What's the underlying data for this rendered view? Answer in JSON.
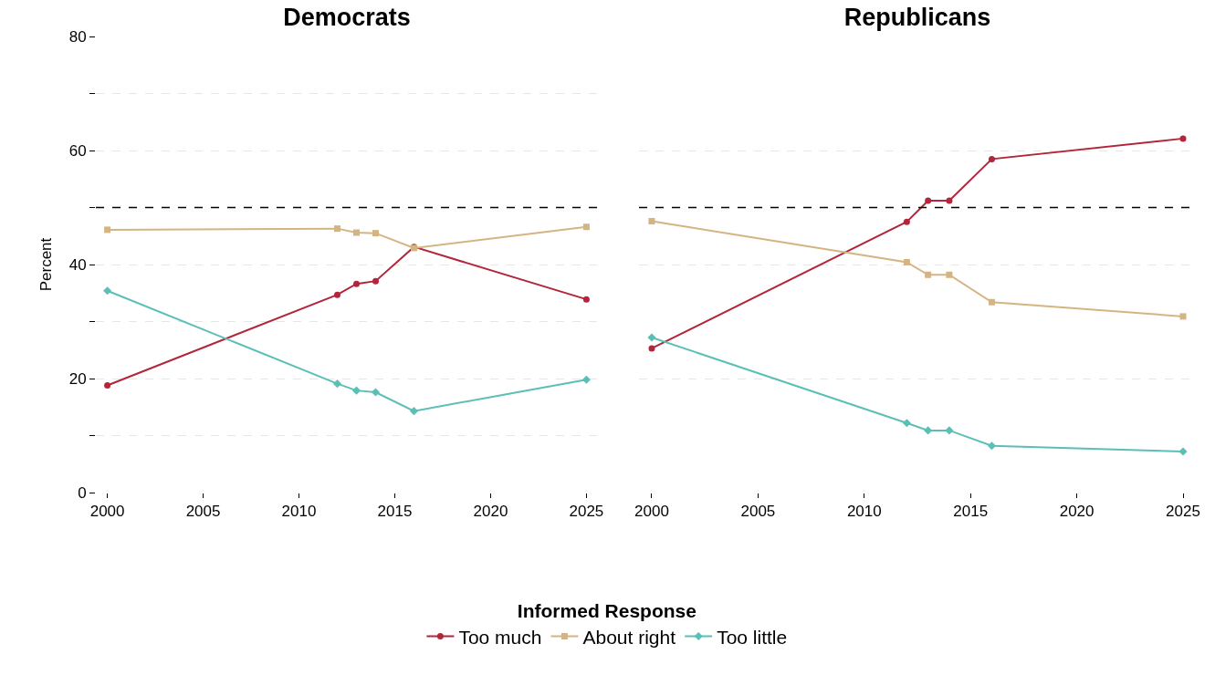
{
  "chart_data": [
    {
      "type": "line",
      "title": "Democrats",
      "ylabel": "Percent",
      "legend_title": "Informed Response",
      "legend": "bottom",
      "grid": "y",
      "tick_labels": "xy",
      "x": [
        2000,
        2012,
        2013,
        2014,
        2016,
        2025
      ],
      "series": [
        {
          "name": "Too much",
          "color": "#b2253a",
          "marker": "circle",
          "values": [
            18.8,
            34.7,
            36.6,
            37.1,
            43.1,
            33.9
          ]
        },
        {
          "name": "About right",
          "color": "#d4b483",
          "marker": "square",
          "values": [
            46.1,
            46.3,
            45.6,
            45.5,
            42.9,
            46.6
          ]
        },
        {
          "name": "Too little",
          "color": "#5bbfb5",
          "marker": "diamond",
          "values": [
            35.4,
            19.1,
            17.9,
            17.6,
            14.3,
            19.8
          ]
        }
      ],
      "xlim": [
        1999.4,
        2025.6
      ],
      "xticks": [
        2000,
        2005,
        2010,
        2015,
        2020,
        2025
      ],
      "ylim": [
        0,
        80
      ],
      "yticks": [
        0,
        {
          "value": 10,
          "label": null
        },
        20,
        {
          "value": 30,
          "label": null
        },
        40,
        {
          "value": 50,
          "label": null
        },
        60,
        {
          "value": 70,
          "label": null
        },
        80
      ],
      "ref_lines": [
        {
          "axis": "y",
          "value": 50,
          "color": "#000000",
          "line_style": "dashed"
        }
      ]
    },
    {
      "type": "line",
      "title": "Republicans",
      "legend": false,
      "grid": "y",
      "tick_labels": "x",
      "x": [
        2000,
        2012,
        2013,
        2014,
        2016,
        2025
      ],
      "series": [
        {
          "color": "#b2253a",
          "marker": "circle",
          "values": [
            25.3,
            47.5,
            51.2,
            51.2,
            58.5,
            62.1
          ]
        },
        {
          "color": "#d4b483",
          "marker": "square",
          "values": [
            47.6,
            40.4,
            38.2,
            38.2,
            33.4,
            30.9
          ]
        },
        {
          "color": "#5bbfb5",
          "marker": "diamond",
          "values": [
            27.2,
            12.2,
            10.9,
            10.9,
            8.2,
            7.2
          ]
        }
      ],
      "xlim": [
        1999.4,
        2025.6
      ],
      "xticks": [
        2000,
        2005,
        2010,
        2015,
        2020,
        2025
      ],
      "ylim": [
        0,
        80
      ],
      "yticks": [
        0,
        20,
        40,
        60,
        80
      ],
      "ref_lines": [
        {
          "axis": "y",
          "value": 50,
          "color": "#000000",
          "line_style": "dashed"
        }
      ]
    }
  ]
}
